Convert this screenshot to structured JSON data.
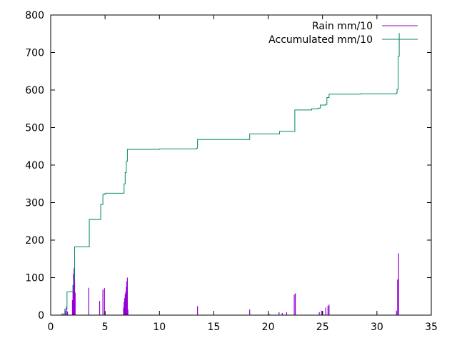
{
  "chart_data": {
    "type": "line",
    "title": "",
    "xlabel": "",
    "ylabel": "",
    "xlim": [
      0,
      35
    ],
    "ylim": [
      0,
      800
    ],
    "xticks": [
      0,
      5,
      10,
      15,
      20,
      25,
      30,
      35
    ],
    "yticks": [
      0,
      100,
      200,
      300,
      400,
      500,
      600,
      700,
      800
    ],
    "grid": false,
    "legend": "top-right",
    "series": [
      {
        "name": "Rain mm/10",
        "style": "impulses",
        "color": "#9400d3",
        "points": [
          [
            1.2,
            3
          ],
          [
            1.35,
            12
          ],
          [
            1.45,
            22
          ],
          [
            1.55,
            10
          ],
          [
            2.0,
            40
          ],
          [
            2.05,
            80
          ],
          [
            2.1,
            110
          ],
          [
            2.15,
            125
          ],
          [
            2.2,
            95
          ],
          [
            2.25,
            60
          ],
          [
            3.5,
            73
          ],
          [
            4.5,
            38
          ],
          [
            4.8,
            68
          ],
          [
            4.95,
            72
          ],
          [
            5.0,
            8
          ],
          [
            6.7,
            20
          ],
          [
            6.75,
            35
          ],
          [
            6.8,
            45
          ],
          [
            6.85,
            55
          ],
          [
            6.9,
            62
          ],
          [
            6.95,
            75
          ],
          [
            7.0,
            90
          ],
          [
            7.05,
            100
          ],
          [
            7.1,
            15
          ],
          [
            13.5,
            24
          ],
          [
            18.3,
            15
          ],
          [
            20.1,
            3
          ],
          [
            21.0,
            8
          ],
          [
            21.3,
            6
          ],
          [
            21.7,
            8
          ],
          [
            22.4,
            55
          ],
          [
            22.5,
            58
          ],
          [
            24.7,
            8
          ],
          [
            24.9,
            12
          ],
          [
            25.0,
            10
          ],
          [
            25.3,
            20
          ],
          [
            25.5,
            25
          ],
          [
            25.6,
            28
          ],
          [
            31.8,
            12
          ],
          [
            31.9,
            95
          ],
          [
            32.0,
            165
          ]
        ]
      },
      {
        "name": "Accumulated mm/10",
        "style": "steps",
        "color": "#00876c",
        "points": [
          [
            0.7,
            0
          ],
          [
            1.0,
            3
          ],
          [
            1.3,
            16
          ],
          [
            1.5,
            62
          ],
          [
            2.05,
            62
          ],
          [
            2.1,
            90
          ],
          [
            2.2,
            182
          ],
          [
            3.5,
            182
          ],
          [
            3.55,
            255
          ],
          [
            4.5,
            255
          ],
          [
            4.6,
            295
          ],
          [
            4.8,
            322
          ],
          [
            5.0,
            325
          ],
          [
            6.7,
            325
          ],
          [
            6.75,
            350
          ],
          [
            6.85,
            380
          ],
          [
            6.95,
            410
          ],
          [
            7.05,
            442
          ],
          [
            10.0,
            443
          ],
          [
            13.4,
            445
          ],
          [
            13.5,
            468
          ],
          [
            18.2,
            468
          ],
          [
            18.3,
            483
          ],
          [
            21.0,
            483
          ],
          [
            21.05,
            490
          ],
          [
            22.4,
            490
          ],
          [
            22.45,
            547
          ],
          [
            24.0,
            550
          ],
          [
            24.6,
            552
          ],
          [
            24.8,
            560
          ],
          [
            25.3,
            562
          ],
          [
            25.4,
            580
          ],
          [
            25.6,
            589
          ],
          [
            28.5,
            590
          ],
          [
            31.8,
            592
          ],
          [
            31.85,
            602
          ],
          [
            31.95,
            690
          ],
          [
            32.05,
            752
          ]
        ]
      }
    ]
  }
}
